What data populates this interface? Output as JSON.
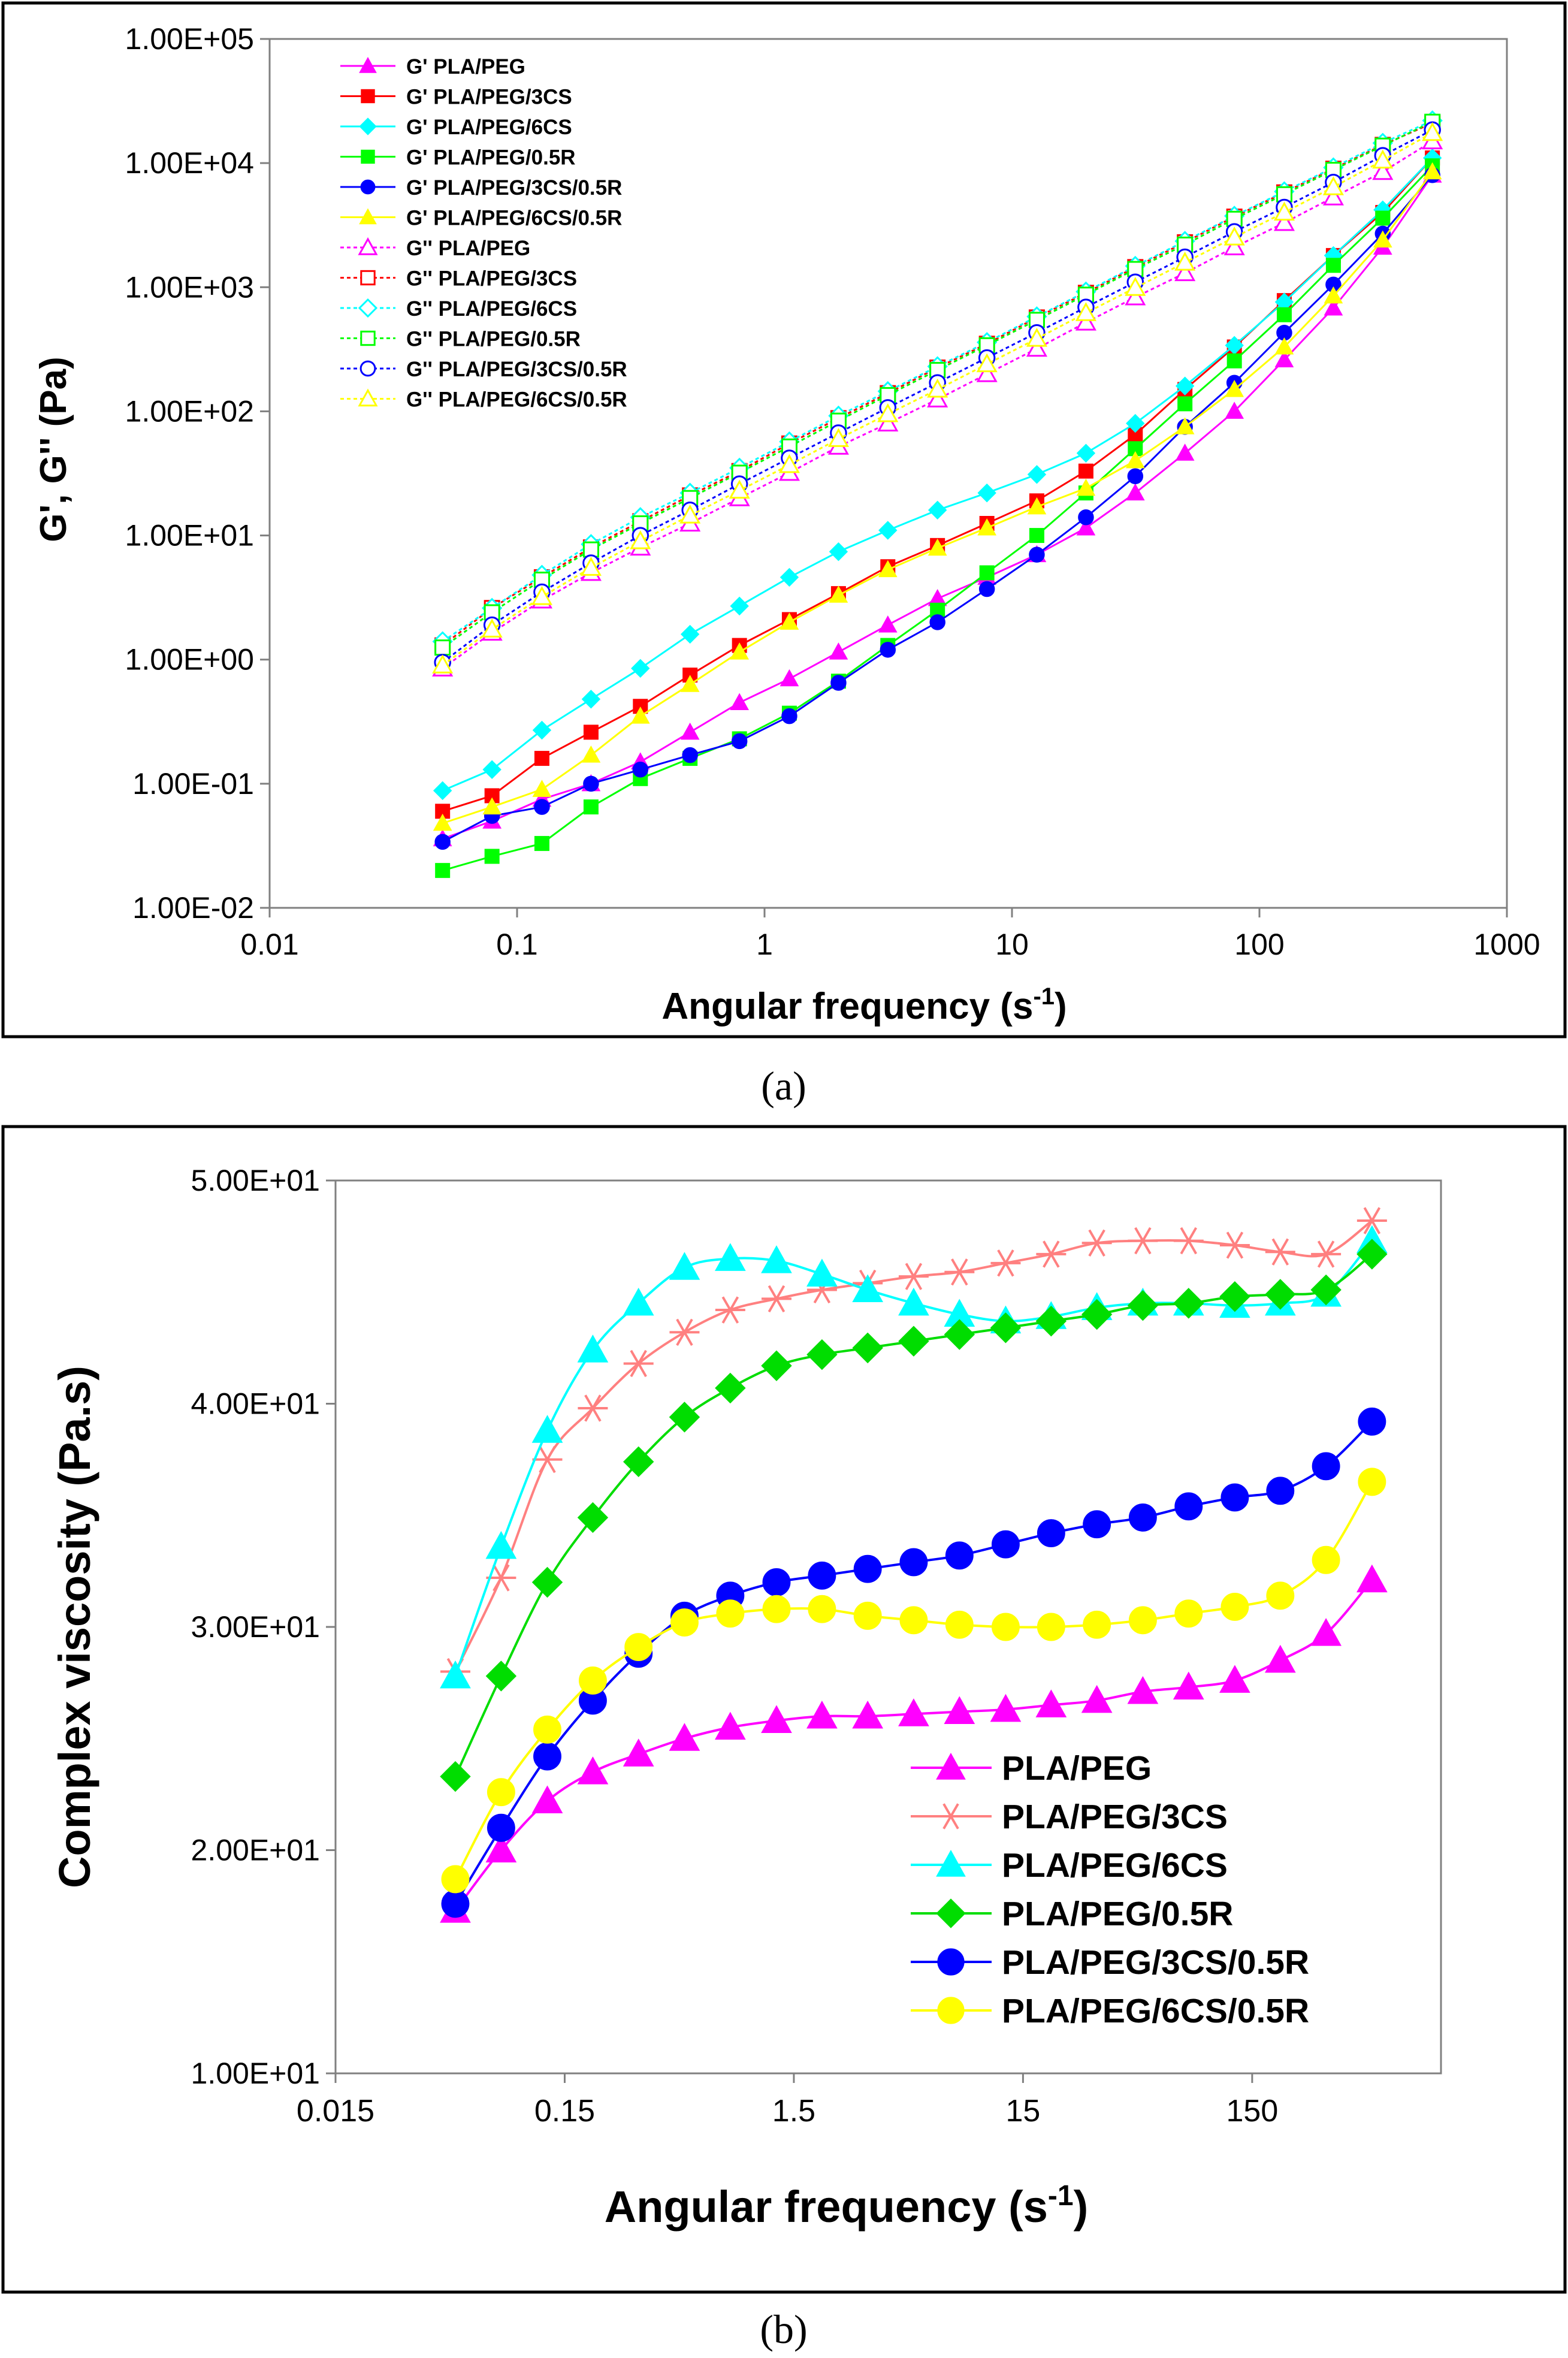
{
  "panel_a_caption": "(a)",
  "panel_b_caption": "(b)",
  "colors": {
    "magenta": "#ff00ff",
    "red": "#ff0000",
    "cyan": "#00ffff",
    "green": "#00ff00",
    "blue": "#0000ff",
    "yellow": "#ffff00",
    "salmon": "#ff8080",
    "panel_b_green": "#00dd00",
    "axis": "#808080"
  },
  "chart_data": [
    {
      "id": "a",
      "type": "line",
      "xscale": "log",
      "yscale": "log",
      "xlabel": "Angular frequency (s",
      "xlabel_sup": "-1",
      "xlabel_close": ")",
      "ylabel": "G', G'' (Pa)",
      "xlim": [
        0.01,
        1000
      ],
      "ylim": [
        0.01,
        100000
      ],
      "xticks": [
        0.01,
        0.1,
        1,
        10,
        100,
        1000
      ],
      "xtick_labels": [
        "0.01",
        "0.1",
        "1",
        "10",
        "100",
        "1000"
      ],
      "yticks": [
        0.01,
        0.1,
        1,
        10,
        100,
        1000,
        10000,
        100000
      ],
      "ytick_labels": [
        "1.00E-02",
        "1.00E-01",
        "1.00E+00",
        "1.00E+01",
        "1.00E+02",
        "1.00E+03",
        "1.00E+04",
        "1.00E+05"
      ],
      "legend_position": "top-left",
      "x": [
        0.05,
        0.0792,
        0.126,
        0.199,
        0.315,
        0.5,
        0.792,
        1.26,
        1.99,
        3.15,
        5.0,
        7.92,
        12.6,
        19.9,
        31.5,
        50.0,
        79.2,
        126,
        199,
        315,
        500
      ],
      "series": [
        {
          "name": "G' PLA/PEG",
          "color": "#ff00ff",
          "marker": "triangle",
          "filled": true,
          "values": [
            0.036,
            0.05,
            0.075,
            0.1,
            0.15,
            0.26,
            0.45,
            0.7,
            1.15,
            1.9,
            3.1,
            4.6,
            7.0,
            11.5,
            22,
            46,
            100,
            260,
            680,
            2100,
            8000
          ]
        },
        {
          "name": "G' PLA/PEG/3CS",
          "color": "#ff0000",
          "marker": "square",
          "filled": true,
          "values": [
            0.06,
            0.08,
            0.16,
            0.26,
            0.42,
            0.75,
            1.3,
            2.1,
            3.4,
            5.6,
            8.3,
            12.5,
            19,
            33,
            65,
            150,
            330,
            780,
            1800,
            4000,
            11000
          ]
        },
        {
          "name": "G' PLA/PEG/6CS",
          "color": "#00ffff",
          "marker": "diamond",
          "filled": true,
          "values": [
            0.088,
            0.13,
            0.27,
            0.48,
            0.85,
            1.6,
            2.7,
            4.6,
            7.4,
            11,
            16,
            22,
            31,
            46,
            80,
            160,
            340,
            760,
            1800,
            4200,
            11000
          ]
        },
        {
          "name": "G' PLA/PEG/0.5R",
          "color": "#00ff00",
          "marker": "square",
          "filled": true,
          "values": [
            0.02,
            0.026,
            0.033,
            0.065,
            0.11,
            0.16,
            0.23,
            0.37,
            0.67,
            1.3,
            2.5,
            5.0,
            10,
            22,
            50,
            115,
            255,
            600,
            1500,
            3600,
            9500
          ]
        },
        {
          "name": "G' PLA/PEG/3CS/0.5R",
          "color": "#0000ff",
          "marker": "circle",
          "filled": true,
          "values": [
            0.034,
            0.055,
            0.065,
            0.1,
            0.13,
            0.17,
            0.22,
            0.35,
            0.65,
            1.2,
            2.0,
            3.7,
            7.0,
            14,
            30,
            75,
            170,
            430,
            1050,
            2700,
            8000
          ]
        },
        {
          "name": "G' PLA/PEG/6CS/0.5R",
          "color": "#ffff00",
          "marker": "triangle",
          "filled": true,
          "values": [
            0.048,
            0.065,
            0.09,
            0.17,
            0.35,
            0.63,
            1.15,
            2.0,
            3.3,
            5.3,
            7.9,
            11.5,
            17,
            24,
            40,
            75,
            150,
            330,
            850,
            2400,
            8500
          ]
        },
        {
          "name": "G'' PLA/PEG",
          "color": "#ff00ff",
          "marker": "triangle",
          "filled": false,
          "values": [
            0.85,
            1.65,
            3.0,
            5.0,
            8.0,
            12.5,
            20,
            32,
            52,
            80,
            125,
            200,
            320,
            520,
            830,
            1300,
            2100,
            3300,
            5300,
            8500,
            15000
          ]
        },
        {
          "name": "G'' PLA/PEG/3CS",
          "color": "#ff0000",
          "marker": "square",
          "filled": false,
          "values": [
            1.3,
            2.6,
            4.6,
            8.0,
            13,
            21,
            33,
            55,
            88,
            140,
            225,
            350,
            570,
            900,
            1450,
            2300,
            3700,
            5800,
            9000,
            14000,
            21000
          ]
        },
        {
          "name": "G'' PLA/PEG/6CS",
          "color": "#00ffff",
          "marker": "diamond",
          "filled": false,
          "values": [
            1.4,
            2.6,
            4.8,
            8.5,
            14,
            22,
            35,
            57,
            92,
            145,
            230,
            360,
            580,
            920,
            1480,
            2350,
            3750,
            5900,
            9200,
            14500,
            22000
          ]
        },
        {
          "name": "G'' PLA/PEG/0.5R",
          "color": "#00ff00",
          "marker": "square",
          "filled": false,
          "values": [
            1.25,
            2.4,
            4.4,
            7.7,
            12.5,
            20,
            32,
            52,
            84,
            135,
            215,
            340,
            545,
            870,
            1400,
            2200,
            3550,
            5600,
            8800,
            13800,
            21500
          ]
        },
        {
          "name": "G'' PLA/PEG/3CS/0.5R",
          "color": "#0000ff",
          "marker": "circle",
          "filled": false,
          "values": [
            0.95,
            1.9,
            3.5,
            6.0,
            10,
            16,
            26,
            42,
            67,
            107,
            170,
            270,
            430,
            690,
            1100,
            1750,
            2800,
            4400,
            7000,
            11500,
            18500
          ]
        },
        {
          "name": "G'' PLA/PEG/6CS/0.5R",
          "color": "#ffff00",
          "marker": "triangle",
          "filled": false,
          "values": [
            0.9,
            1.75,
            3.2,
            5.5,
            9.0,
            14.5,
            23,
            37,
            60,
            95,
            150,
            240,
            385,
            620,
            990,
            1580,
            2520,
            4000,
            6400,
            10500,
            17500
          ]
        }
      ]
    },
    {
      "id": "b",
      "type": "line",
      "xscale": "log",
      "yscale": "linear",
      "xlabel": "Angular frequency (s",
      "xlabel_sup": "-1",
      "xlabel_close": ")",
      "ylabel": "Complex viscosity (Pa.s)",
      "xlim": [
        0.015,
        1000
      ],
      "ylim": [
        10,
        50
      ],
      "xticks": [
        0.015,
        0.15,
        1.5,
        15,
        150
      ],
      "xtick_labels": [
        "0.015",
        "0.15",
        "1.5",
        "15",
        "150"
      ],
      "yticks": [
        10,
        20,
        30,
        40,
        50
      ],
      "ytick_labels": [
        "1.00E+01",
        "2.00E+01",
        "3.00E+01",
        "4.00E+01",
        "5.00E+01"
      ],
      "legend_position": "bottom-right",
      "x": [
        0.05,
        0.0792,
        0.126,
        0.199,
        0.315,
        0.5,
        0.792,
        1.26,
        1.99,
        3.15,
        5.0,
        7.92,
        12.6,
        19.9,
        31.5,
        50.0,
        79.2,
        126,
        199,
        315,
        500
      ],
      "series": [
        {
          "name": "PLA/PEG",
          "color": "#ff00ff",
          "marker": "triangle",
          "values": [
            17.3,
            20.0,
            22.2,
            23.5,
            24.3,
            25.0,
            25.5,
            25.8,
            26.0,
            26.0,
            26.1,
            26.2,
            26.3,
            26.5,
            26.7,
            27.1,
            27.3,
            27.6,
            28.5,
            29.7,
            32.1
          ]
        },
        {
          "name": "PLA/PEG/3CS",
          "color": "#ff8080",
          "marker": "asterisk",
          "values": [
            28.0,
            32.2,
            37.5,
            39.8,
            41.8,
            43.2,
            44.2,
            44.7,
            45.1,
            45.4,
            45.7,
            45.9,
            46.3,
            46.7,
            47.2,
            47.3,
            47.3,
            47.1,
            46.8,
            46.7,
            48.2
          ]
        },
        {
          "name": "PLA/PEG/6CS",
          "color": "#00ffff",
          "marker": "triangle",
          "values": [
            27.8,
            33.6,
            38.8,
            42.4,
            44.5,
            46.1,
            46.5,
            46.4,
            45.8,
            45.1,
            44.5,
            44.0,
            43.7,
            43.9,
            44.3,
            44.5,
            44.5,
            44.4,
            44.5,
            44.9,
            47.3
          ]
        },
        {
          "name": "PLA/PEG/0.5R",
          "color": "#00dd00",
          "marker": "diamond",
          "values": [
            23.3,
            27.8,
            32.0,
            34.9,
            37.4,
            39.4,
            40.7,
            41.7,
            42.2,
            42.5,
            42.8,
            43.1,
            43.4,
            43.7,
            44.0,
            44.4,
            44.5,
            44.8,
            44.9,
            45.1,
            46.7
          ]
        },
        {
          "name": "PLA/PEG/3CS/0.5R",
          "color": "#0000ff",
          "marker": "circle",
          "values": [
            17.6,
            21.0,
            24.2,
            26.7,
            28.8,
            30.5,
            31.4,
            32.0,
            32.3,
            32.6,
            32.9,
            33.2,
            33.7,
            34.2,
            34.6,
            34.9,
            35.4,
            35.8,
            36.1,
            37.2,
            39.2
          ]
        },
        {
          "name": "PLA/PEG/6CS/0.5R",
          "color": "#ffff00",
          "marker": "circle",
          "values": [
            18.7,
            22.6,
            25.4,
            27.6,
            29.1,
            30.2,
            30.6,
            30.8,
            30.8,
            30.5,
            30.3,
            30.1,
            30.0,
            30.0,
            30.1,
            30.3,
            30.6,
            30.9,
            31.4,
            33.0,
            36.5
          ]
        }
      ]
    }
  ]
}
